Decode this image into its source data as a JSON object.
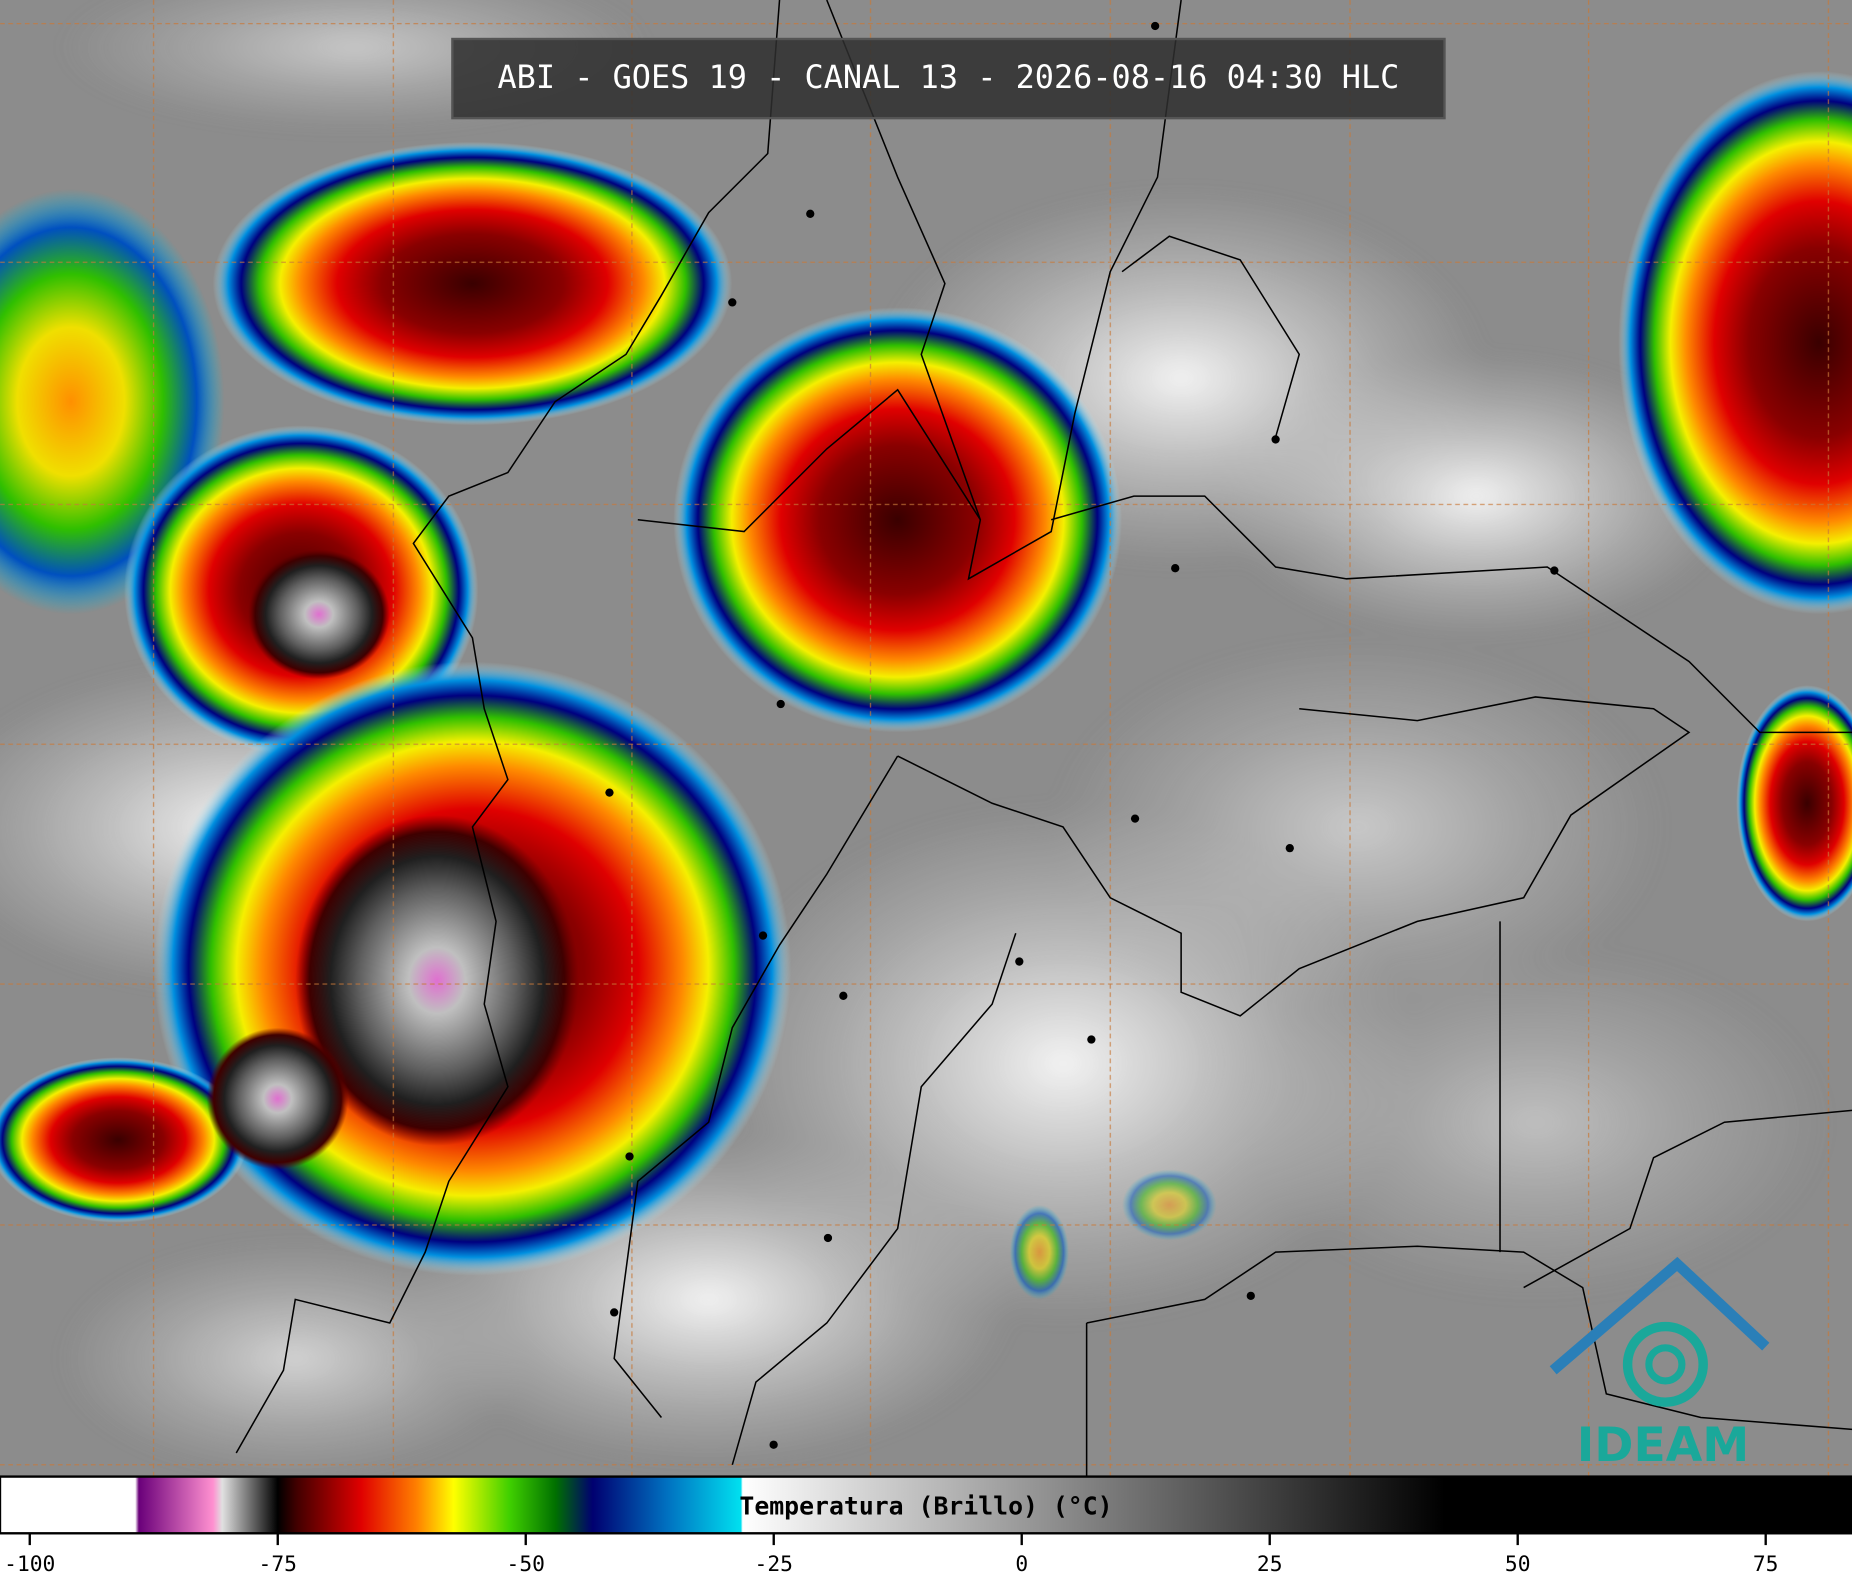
{
  "title": "ABI - GOES 19 - CANAL 13 - 2026-08-16 04:30 HLC",
  "colorbar": {
    "label": "Temperatura (Brillo) (°C)",
    "lim": [
      -103,
      83.7
    ],
    "ticks": [
      -100,
      -75,
      -50,
      -25,
      0,
      25,
      50,
      75
    ]
  },
  "logo": "IDEAM"
}
